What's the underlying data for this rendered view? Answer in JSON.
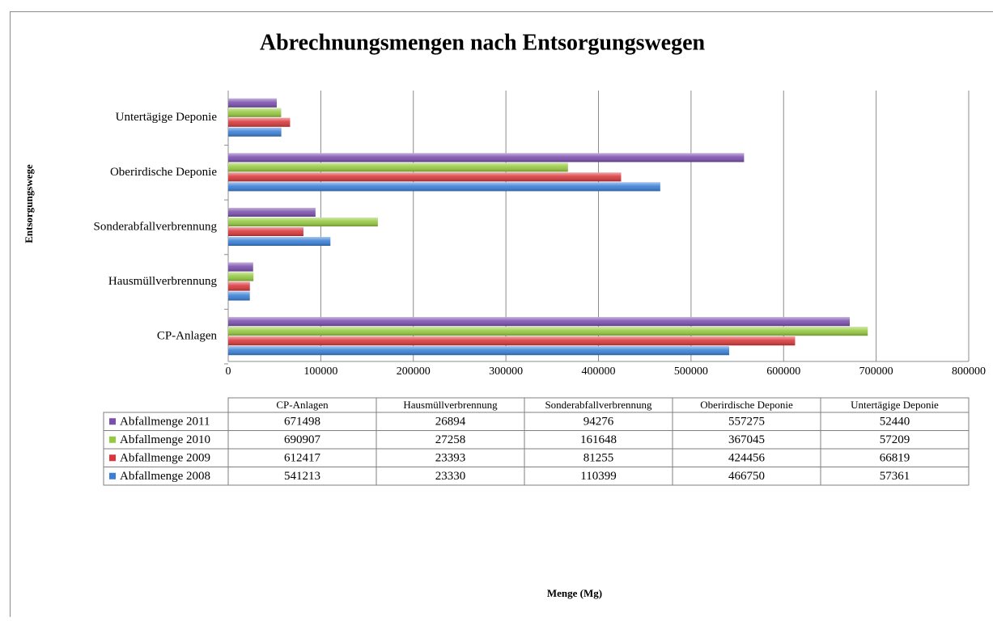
{
  "chart_data": {
    "type": "bar",
    "orientation": "horizontal",
    "title": "Abrechnungsmengen nach Entsorgungswegen",
    "y_axis_label": "Entsorgungswege",
    "x_axis_label": "Menge (Mg)",
    "categories": [
      "CP-Anlagen",
      "Hausmüllverbrennung",
      "Sonderabfallverbrennung",
      "Oberirdische Deponie",
      "Untertägige Deponie"
    ],
    "series": [
      {
        "name": "Abfallmenge 2011",
        "color": "#7b4fae",
        "values": [
          671498,
          26894,
          94276,
          557275,
          52440
        ]
      },
      {
        "name": "Abfallmenge 2010",
        "color": "#95c940",
        "values": [
          690907,
          27258,
          161648,
          367045,
          57209
        ]
      },
      {
        "name": "Abfallmenge 2009",
        "color": "#d8383b",
        "values": [
          612417,
          23393,
          81255,
          424456,
          66819
        ]
      },
      {
        "name": "Abfallmenge 2008",
        "color": "#3a7fd6",
        "values": [
          541213,
          23330,
          110399,
          466750,
          57361
        ]
      }
    ],
    "xlim": [
      0,
      800000
    ],
    "xticks": [
      0,
      100000,
      200000,
      300000,
      400000,
      500000,
      600000,
      700000,
      800000
    ],
    "grid": true
  }
}
